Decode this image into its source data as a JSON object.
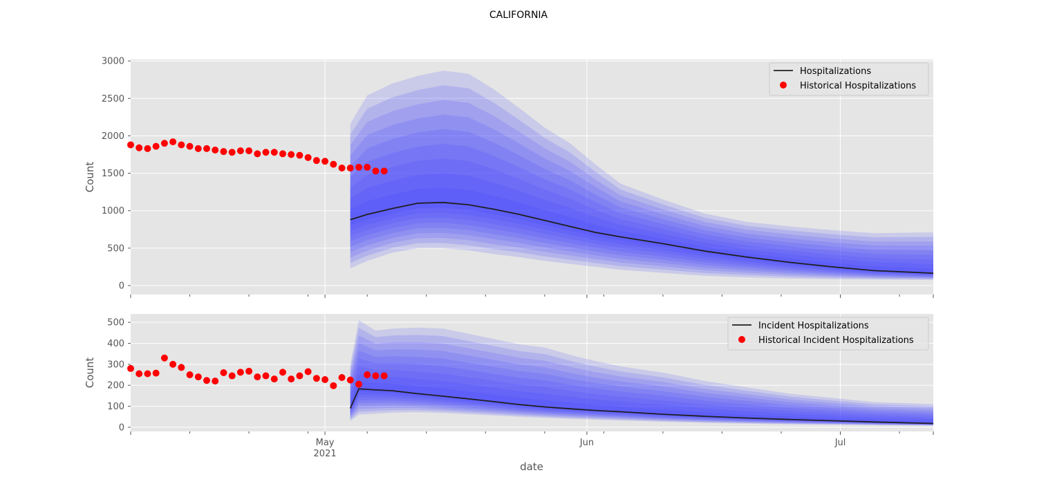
{
  "figure": {
    "title": "CALIFORNIA",
    "xlabel": "date"
  },
  "colors": {
    "background": "#e5e5e5",
    "band": "#4040ff",
    "median": "#1f1f1f",
    "historical": "#ff0000"
  },
  "chart_data": [
    {
      "type": "line",
      "name": "hospitalizations",
      "ylabel": "Count",
      "ylim": [
        -120,
        3020
      ],
      "yticks": [
        0,
        500,
        1000,
        1500,
        2000,
        2500,
        3000
      ],
      "xlim": [
        "2021-04-08",
        "2021-07-12"
      ],
      "grid": true,
      "legend_position": "top-right",
      "legend": [
        "Hospitalizations",
        "Historical Hospitalizations"
      ],
      "forecast": {
        "dates": [
          "2021-05-04",
          "2021-05-06",
          "2021-05-09",
          "2021-05-12",
          "2021-05-15",
          "2021-05-18",
          "2021-05-21",
          "2021-05-24",
          "2021-05-27",
          "2021-05-30",
          "2021-06-02",
          "2021-06-05",
          "2021-06-10",
          "2021-06-15",
          "2021-06-20",
          "2021-06-25",
          "2021-06-30",
          "2021-07-05",
          "2021-07-12"
        ],
        "median": [
          880,
          950,
          1030,
          1100,
          1110,
          1080,
          1020,
          950,
          870,
          790,
          710,
          650,
          560,
          460,
          380,
          310,
          250,
          200,
          165
        ],
        "outer_upper": [
          2160,
          2540,
          2700,
          2800,
          2870,
          2830,
          2620,
          2370,
          2110,
          1900,
          1620,
          1360,
          1150,
          960,
          850,
          790,
          740,
          700,
          710
        ],
        "outer_lower": [
          230,
          330,
          440,
          500,
          500,
          470,
          420,
          380,
          330,
          290,
          250,
          210,
          170,
          130,
          110,
          95,
          85,
          80,
          75
        ]
      },
      "historical": {
        "dates": [
          "2021-04-08",
          "2021-04-09",
          "2021-04-10",
          "2021-04-11",
          "2021-04-12",
          "2021-04-13",
          "2021-04-14",
          "2021-04-15",
          "2021-04-16",
          "2021-04-17",
          "2021-04-18",
          "2021-04-19",
          "2021-04-20",
          "2021-04-21",
          "2021-04-22",
          "2021-04-23",
          "2021-04-24",
          "2021-04-25",
          "2021-04-26",
          "2021-04-27",
          "2021-04-28",
          "2021-04-29",
          "2021-04-30",
          "2021-05-01",
          "2021-05-02",
          "2021-05-03",
          "2021-05-04",
          "2021-05-05",
          "2021-05-06",
          "2021-05-07",
          "2021-05-08"
        ],
        "values": [
          1880,
          1840,
          1830,
          1860,
          1900,
          1920,
          1880,
          1860,
          1830,
          1830,
          1810,
          1790,
          1780,
          1800,
          1800,
          1760,
          1780,
          1780,
          1760,
          1750,
          1740,
          1710,
          1670,
          1660,
          1620,
          1570,
          1570,
          1580,
          1580,
          1530,
          1530
        ]
      }
    },
    {
      "type": "line",
      "name": "incident hospitalizations",
      "ylabel": "Count",
      "ylim": [
        -20,
        540
      ],
      "yticks": [
        0,
        100,
        200,
        300,
        400,
        500
      ],
      "xlim": [
        "2021-04-08",
        "2021-07-12"
      ],
      "xticks": [
        "May",
        "Jun",
        "Jul"
      ],
      "xtick_sub": "2021",
      "grid": true,
      "legend_position": "top-right",
      "legend": [
        "Incident Hospitalizations",
        "Historical Incident Hospitalizations"
      ],
      "forecast": {
        "dates": [
          "2021-05-04",
          "2021-05-05",
          "2021-05-07",
          "2021-05-09",
          "2021-05-12",
          "2021-05-15",
          "2021-05-18",
          "2021-05-21",
          "2021-05-24",
          "2021-05-27",
          "2021-05-30",
          "2021-06-02",
          "2021-06-05",
          "2021-06-10",
          "2021-06-15",
          "2021-06-20",
          "2021-06-25",
          "2021-06-30",
          "2021-07-05",
          "2021-07-12"
        ],
        "median": [
          90,
          183,
          178,
          174,
          160,
          148,
          135,
          122,
          108,
          97,
          88,
          80,
          74,
          62,
          52,
          44,
          37,
          31,
          25,
          18
        ],
        "outer_upper": [
          300,
          510,
          460,
          470,
          475,
          470,
          445,
          420,
          395,
          380,
          345,
          315,
          290,
          260,
          220,
          190,
          160,
          140,
          120,
          110
        ],
        "outer_lower": [
          30,
          60,
          65,
          70,
          72,
          68,
          62,
          56,
          50,
          45,
          40,
          36,
          32,
          26,
          21,
          17,
          14,
          12,
          10,
          8
        ]
      },
      "historical": {
        "dates": [
          "2021-04-08",
          "2021-04-09",
          "2021-04-10",
          "2021-04-11",
          "2021-04-12",
          "2021-04-13",
          "2021-04-14",
          "2021-04-15",
          "2021-04-16",
          "2021-04-17",
          "2021-04-18",
          "2021-04-19",
          "2021-04-20",
          "2021-04-21",
          "2021-04-22",
          "2021-04-23",
          "2021-04-24",
          "2021-04-25",
          "2021-04-26",
          "2021-04-27",
          "2021-04-28",
          "2021-04-29",
          "2021-04-30",
          "2021-05-01",
          "2021-05-02",
          "2021-05-03",
          "2021-05-04",
          "2021-05-05",
          "2021-05-06",
          "2021-05-07",
          "2021-05-08"
        ],
        "values": [
          280,
          255,
          255,
          258,
          330,
          300,
          285,
          250,
          240,
          223,
          220,
          260,
          245,
          262,
          267,
          240,
          245,
          230,
          262,
          230,
          245,
          265,
          233,
          227,
          198,
          237,
          225,
          205,
          250,
          245,
          245
        ]
      }
    }
  ]
}
